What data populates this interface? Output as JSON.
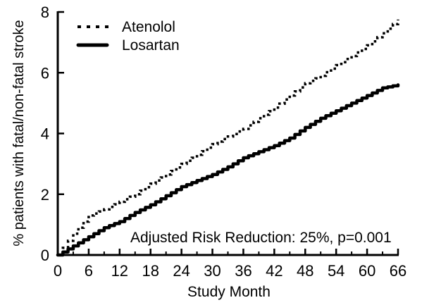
{
  "chart_data": {
    "type": "line",
    "subtype": "kaplan-meier-step",
    "title": "",
    "xlabel": "Study Month",
    "ylabel": "% patients with fatal/non-fatal stroke",
    "annotation": "Adjusted Risk Reduction: 25%, p=0.001",
    "xlim": [
      0,
      66
    ],
    "ylim": [
      0,
      8
    ],
    "x_major_ticks": [
      0,
      6,
      12,
      18,
      24,
      30,
      36,
      42,
      48,
      54,
      60,
      66
    ],
    "x_minor_ticks": [
      3,
      9,
      15,
      21,
      27,
      33,
      39,
      45,
      51,
      57,
      63
    ],
    "y_major_ticks": [
      0,
      2,
      4,
      6,
      8
    ],
    "grid": false,
    "legend_position": "top-left",
    "line_color": "#000000",
    "background_color": "#ffffff",
    "x": [
      0,
      3,
      6,
      9,
      12,
      15,
      18,
      21,
      24,
      27,
      30,
      33,
      36,
      39,
      42,
      45,
      48,
      51,
      54,
      57,
      60,
      63,
      66
    ],
    "series": [
      {
        "name": "Atenolol",
        "style": "dotted",
        "values": [
          0,
          0.7,
          1.3,
          1.5,
          1.75,
          2.0,
          2.35,
          2.65,
          3.0,
          3.3,
          3.65,
          3.9,
          4.15,
          4.5,
          4.85,
          5.25,
          5.65,
          5.9,
          6.25,
          6.55,
          6.9,
          7.3,
          7.75
        ]
      },
      {
        "name": "Losartan",
        "style": "solid",
        "values": [
          0,
          0.3,
          0.6,
          0.9,
          1.1,
          1.4,
          1.65,
          1.95,
          2.25,
          2.45,
          2.65,
          2.9,
          3.2,
          3.4,
          3.6,
          3.85,
          4.2,
          4.5,
          4.75,
          5.0,
          5.25,
          5.5,
          5.6
        ]
      }
    ]
  }
}
